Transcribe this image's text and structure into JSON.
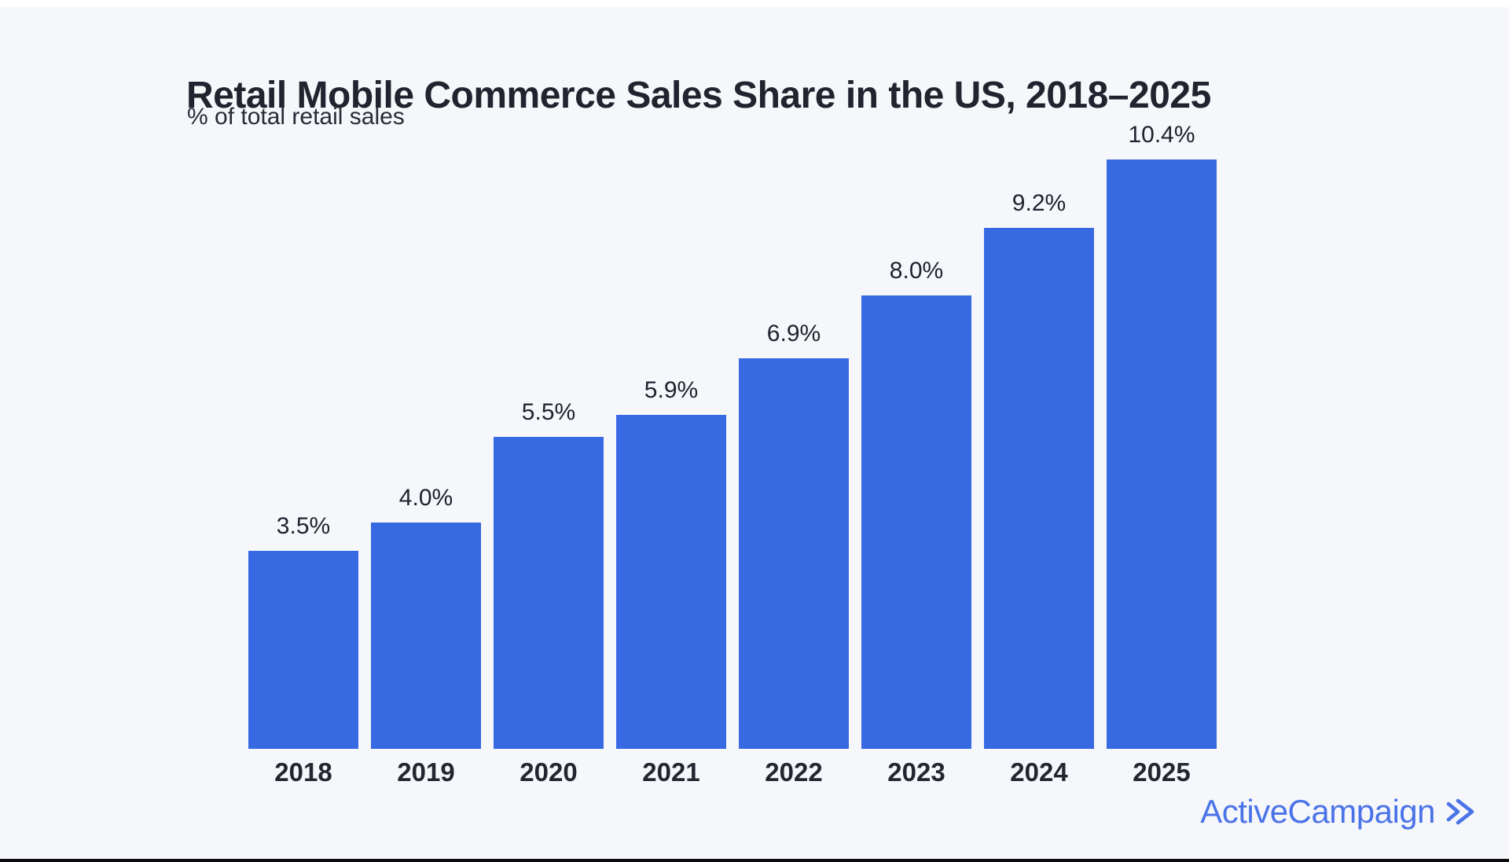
{
  "page": {
    "background_color": "#f6f7fb",
    "bottom_edge_color": "#0b0b0d"
  },
  "header": {
    "title": "Retail Mobile Commerce Sales Share in the US, 2018–2025",
    "subtitle": "% of total retail sales"
  },
  "chart_data": {
    "type": "bar",
    "title": "Retail Mobile Commerce Sales Share in the US, 2018–2025",
    "subtitle": "% of total retail sales",
    "categories": [
      "2018",
      "2019",
      "2020",
      "2021",
      "2022",
      "2023",
      "2024",
      "2025"
    ],
    "values": [
      3.5,
      4.0,
      5.5,
      5.9,
      6.9,
      8.0,
      9.2,
      10.4
    ],
    "value_labels": [
      "3.5%",
      "4.0%",
      "5.5%",
      "5.9%",
      "6.9%",
      "8.0%",
      "9.2%",
      "10.4%"
    ],
    "xlabel": "",
    "ylabel": "% of total retail sales",
    "ylim": [
      0,
      10.55
    ],
    "grid": false,
    "legend": null,
    "bar_color": "#3769e3",
    "label_color": "#1e222c"
  },
  "branding": {
    "logo_text": "ActiveCampaign",
    "logo_color": "#4a73e8",
    "logo_mark": "double-chevron-right"
  }
}
